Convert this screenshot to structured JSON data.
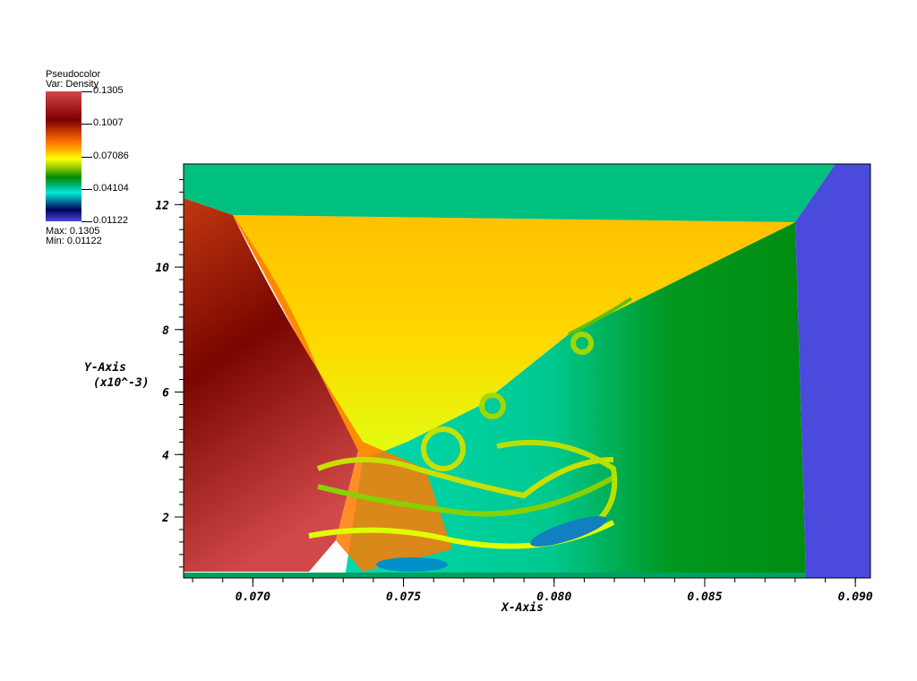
{
  "chart_data": {
    "type": "heatmap",
    "plot_type": "Pseudocolor",
    "variable_label": "Var: Density",
    "legend_title": "Pseudocolor",
    "colorbar": {
      "ticks": [
        "0.1305",
        "0.1007",
        "0.07086",
        "0.04104",
        "0.01122"
      ],
      "max_label": "Max:  0.1305",
      "min_label": "Min:  0.01122",
      "colors": [
        "#d04848",
        "#7a0000",
        "#ff6a00",
        "#ffff00",
        "#008c00",
        "#00e8d8",
        "#00005a",
        "#4a4adc"
      ],
      "placement": "top-left"
    },
    "xlabel": "X-Axis",
    "ylabel": "Y-Axis",
    "ylabel_scale": "(x10^-3)",
    "xlim": [
      0.0677,
      0.0905
    ],
    "ylim": [
      0.05,
      13.3
    ],
    "xticks": [
      "0.070",
      "0.075",
      "0.080",
      "0.085",
      "0.090"
    ],
    "xtick_values": [
      0.07,
      0.075,
      0.08,
      0.085,
      0.09
    ],
    "yticks": [
      "2",
      "4",
      "6",
      "8",
      "10",
      "12"
    ],
    "ytick_values": [
      2,
      4,
      6,
      8,
      10,
      12
    ],
    "grid": false
  }
}
